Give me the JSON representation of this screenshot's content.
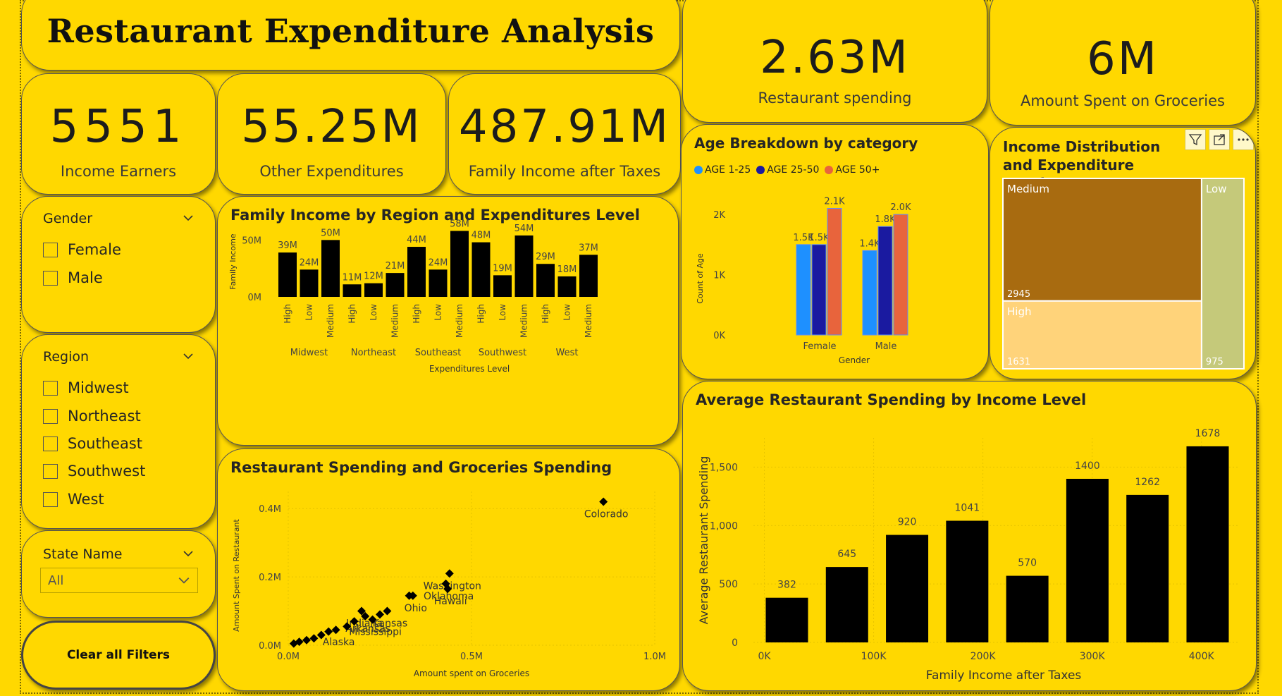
{
  "title": "Restaurant Expenditure Analysis",
  "kpis": {
    "income_earners": {
      "value": "5551",
      "label": "Income Earners"
    },
    "other_expenditures": {
      "value": "55.25M",
      "label": "Other Expenditures"
    },
    "family_income": {
      "value": "487.91M",
      "label": "Family Income after Taxes"
    },
    "restaurant_spending": {
      "value": "2.63M",
      "label": "Restaurant spending"
    },
    "groceries": {
      "value": "6M",
      "label": "Amount Spent on Groceries"
    }
  },
  "slicers": {
    "gender": {
      "title": "Gender",
      "options": [
        "Female",
        "Male"
      ]
    },
    "region": {
      "title": "Region",
      "options": [
        "Midwest",
        "Northeast",
        "Southeast",
        "Southwest",
        "West"
      ]
    },
    "state": {
      "title": "State Name",
      "selected": "All"
    }
  },
  "clear_button": "Clear all Filters",
  "icons": {
    "chevron": "chevron-down-icon",
    "filter": "filter-icon",
    "focus": "focus-mode-icon",
    "more": "more-options-icon"
  },
  "colors": {
    "background": "#FFD800",
    "bar": "#000000",
    "age_1_25": "#1E90FF",
    "age_25_50": "#1A1AA0",
    "age_50_plus": "#E8643C",
    "treemap_medium": "#A86B10",
    "treemap_high": "#FFD37A",
    "treemap_low": "#C5C97A"
  },
  "chart_data": [
    {
      "id": "family_income",
      "type": "bar",
      "title": "Family Income by Region and Expenditures Level",
      "xlabel": "Expenditures Level",
      "ylabel": "Family Income",
      "ylim": [
        0,
        62
      ],
      "yticks": [
        {
          "v": 0,
          "label": "0M"
        },
        {
          "v": 50,
          "label": "50M"
        }
      ],
      "groups": [
        "Midwest",
        "Northeast",
        "Southeast",
        "Southwest",
        "West"
      ],
      "categories": [
        "High",
        "Low",
        "Medium",
        "High",
        "Low",
        "Medium",
        "High",
        "Low",
        "Medium",
        "High",
        "Low",
        "Medium",
        "High",
        "Low",
        "Medium"
      ],
      "values": [
        39,
        24,
        50,
        11,
        12,
        21,
        44,
        24,
        58,
        48,
        19,
        54,
        29,
        18,
        37
      ],
      "value_labels": [
        "39M",
        "24M",
        "50M",
        "11M",
        "12M",
        "21M",
        "44M",
        "24M",
        "58M",
        "48M",
        "19M",
        "54M",
        "29M",
        "18M",
        "37M"
      ]
    },
    {
      "id": "age_breakdown",
      "type": "bar",
      "title": "Age Breakdown by category",
      "xlabel": "Gender",
      "ylabel": "Count of Age",
      "ylim": [
        0,
        2200
      ],
      "yticks": [
        {
          "v": 0,
          "label": "0K"
        },
        {
          "v": 1000,
          "label": "1K"
        },
        {
          "v": 2000,
          "label": "2K"
        }
      ],
      "categories": [
        "Female",
        "Male"
      ],
      "legend": "top-left",
      "series": [
        {
          "name": "AGE 1-25",
          "values": [
            1500,
            1400
          ],
          "labels": [
            "1.5K",
            "1.4K"
          ]
        },
        {
          "name": "AGE 25-50",
          "values": [
            1500,
            1800
          ],
          "labels": [
            "1.5K",
            "1.8K"
          ]
        },
        {
          "name": "AGE 50+",
          "values": [
            2100,
            2000
          ],
          "labels": [
            "2.1K",
            "2.0K"
          ]
        }
      ]
    },
    {
      "id": "income_treemap",
      "type": "heatmap",
      "title": "Income Distribution and Expenditure Levels",
      "items": [
        {
          "name": "Medium",
          "value": 2945
        },
        {
          "name": "High",
          "value": 1631
        },
        {
          "name": "Low",
          "value": 975
        }
      ]
    },
    {
      "id": "scatter",
      "type": "scatter",
      "title": "Restaurant Spending and Groceries Spending",
      "xlabel": "Amount spent on Groceries",
      "ylabel": "Amount Spent on Restaurant",
      "xlim": [
        0,
        1.0
      ],
      "ylim": [
        0,
        0.45
      ],
      "xticks": [
        {
          "v": 0,
          "label": "0.0M"
        },
        {
          "v": 0.5,
          "label": "0.5M"
        },
        {
          "v": 1.0,
          "label": "1.0M"
        }
      ],
      "yticks": [
        {
          "v": 0,
          "label": "0.0M"
        },
        {
          "v": 0.2,
          "label": "0.2M"
        },
        {
          "v": 0.4,
          "label": "0.4M"
        }
      ],
      "points": [
        {
          "x": 0.86,
          "y": 0.42,
          "label": "Colorado"
        },
        {
          "x": 0.44,
          "y": 0.21,
          "label": "Washington"
        },
        {
          "x": 0.43,
          "y": 0.18,
          "label": "Oklahoma"
        },
        {
          "x": 0.435,
          "y": 0.165,
          "label": "Hawaii"
        },
        {
          "x": 0.34,
          "y": 0.145,
          "label": "Ohio"
        },
        {
          "x": 0.33,
          "y": 0.145,
          "label": ""
        },
        {
          "x": 0.2,
          "y": 0.1,
          "label": "Indiana"
        },
        {
          "x": 0.21,
          "y": 0.085,
          "label": "Arkansas"
        },
        {
          "x": 0.27,
          "y": 0.1,
          "label": "Kansas"
        },
        {
          "x": 0.25,
          "y": 0.09,
          "label": ""
        },
        {
          "x": 0.23,
          "y": 0.075,
          "label": "Mississippi"
        },
        {
          "x": 0.18,
          "y": 0.07,
          "label": ""
        },
        {
          "x": 0.16,
          "y": 0.055,
          "label": ""
        },
        {
          "x": 0.13,
          "y": 0.045,
          "label": "Alaska"
        },
        {
          "x": 0.11,
          "y": 0.04,
          "label": ""
        },
        {
          "x": 0.09,
          "y": 0.03,
          "label": ""
        },
        {
          "x": 0.07,
          "y": 0.02,
          "label": ""
        },
        {
          "x": 0.05,
          "y": 0.015,
          "label": ""
        },
        {
          "x": 0.03,
          "y": 0.01,
          "label": ""
        },
        {
          "x": 0.015,
          "y": 0.005,
          "label": ""
        }
      ]
    },
    {
      "id": "avg_restaurant",
      "type": "bar",
      "title": "Average Restaurant Spending by Income Level",
      "xlabel": "Family Income after Taxes",
      "ylabel": "Average Restaurant Spending",
      "ylim": [
        0,
        1750
      ],
      "yticks": [
        {
          "v": 0,
          "label": "0"
        },
        {
          "v": 500,
          "label": "500"
        },
        {
          "v": 1000,
          "label": "1,000"
        },
        {
          "v": 1500,
          "label": "1,500"
        }
      ],
      "xticks": [
        {
          "v": 0,
          "label": "0K"
        },
        {
          "v": 100,
          "label": "100K"
        },
        {
          "v": 200,
          "label": "200K"
        },
        {
          "v": 300,
          "label": "300K"
        },
        {
          "v": 400,
          "label": "400K"
        }
      ],
      "xlim": [
        -10,
        435
      ],
      "x": [
        0,
        55,
        110,
        165,
        220,
        275,
        330,
        385
      ],
      "values": [
        382,
        645,
        920,
        1041,
        570,
        1400,
        1262,
        1678
      ]
    }
  ]
}
